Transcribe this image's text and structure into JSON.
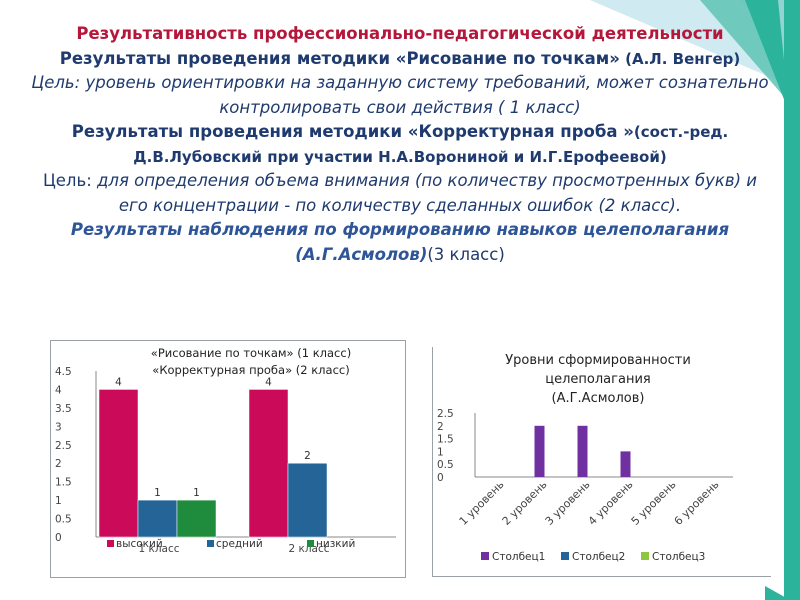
{
  "colors": {
    "title_red": "#b5173a",
    "title_navy": "#1f3a6e",
    "accent_teal": "#2bb39c",
    "accent_green": "#8dc63f",
    "bar_magenta": "#cc0a5a",
    "bar_blue": "#246496",
    "bar_green": "#1e8c3c",
    "bar_purple": "#7030a0"
  },
  "heading": {
    "line1": "Результативность профессионально-педагогической деятельности",
    "method1_title": "Результаты проведения методики «Рисование по точкам»",
    "method1_author": " (А.Л. Венгер)",
    "method1_goal": "Цель: уровень ориентировки на заданную систему требований, может сознательно контролировать свои действия ( 1 класс)",
    "method2_title": "Результаты проведения методики «Корректурная проба »",
    "method2_author": "(сост.-ред. Д.В.Лубовский при участии Н.А.Ворониной и И.Г.Ерофеевой)",
    "method2_goal_label": "Цель: ",
    "method2_goal": "для определения объема внимания (по количеству просмотренных букв) и его концентрации - по количеству сделанных ошибок (2 класс).",
    "method3_title": "Результаты наблюдения по формированию навыков целеполагания (А.Г.Асмолов)",
    "method3_class": "(3 класс)"
  },
  "chart_data": [
    {
      "type": "bar",
      "title_lines": [
        "«Рисование по точкам» (1 класс)",
        "«Корректурная проба» (2 класс)"
      ],
      "categories": [
        "1 класс",
        "2 класс"
      ],
      "series": [
        {
          "name": "высокий",
          "values": [
            4,
            4
          ],
          "color": "#cc0a5a"
        },
        {
          "name": "средний",
          "values": [
            1,
            2
          ],
          "color": "#246496"
        },
        {
          "name": "низкий",
          "values": [
            1,
            null
          ],
          "color": "#1e8c3c"
        }
      ],
      "data_labels": [
        [
          "4",
          "4"
        ],
        [
          "1",
          "2"
        ],
        [
          "1",
          ""
        ]
      ],
      "ylim": [
        0,
        4.5
      ],
      "yticks": [
        "0",
        "0.5",
        "1",
        "1.5",
        "2",
        "2.5",
        "3",
        "3.5",
        "4",
        "4.5"
      ],
      "grid": false,
      "legend": "bottom"
    },
    {
      "type": "bar",
      "title_lines": [
        "Уровни сформированности",
        "целеполагания",
        "(А.Г.Асмолов)"
      ],
      "categories": [
        "1 уровень",
        "2 уровень",
        "3 уровень",
        "4 уровень",
        "5 уровень",
        "6 уровень"
      ],
      "series": [
        {
          "name": "Столбец1",
          "values": [
            null,
            2,
            2,
            1,
            null,
            null
          ],
          "color": "#7030a0"
        },
        {
          "name": "Столбец2",
          "values": [
            null,
            null,
            null,
            null,
            null,
            null
          ],
          "color": "#246496"
        },
        {
          "name": "Столбец3",
          "values": [
            null,
            null,
            null,
            null,
            null,
            null
          ],
          "color": "#8dc63f"
        }
      ],
      "ylim": [
        0,
        2.5
      ],
      "yticks": [
        "0",
        "0.5",
        "1",
        "1.5",
        "2",
        "2.5"
      ],
      "grid": false,
      "legend": "bottom"
    }
  ]
}
